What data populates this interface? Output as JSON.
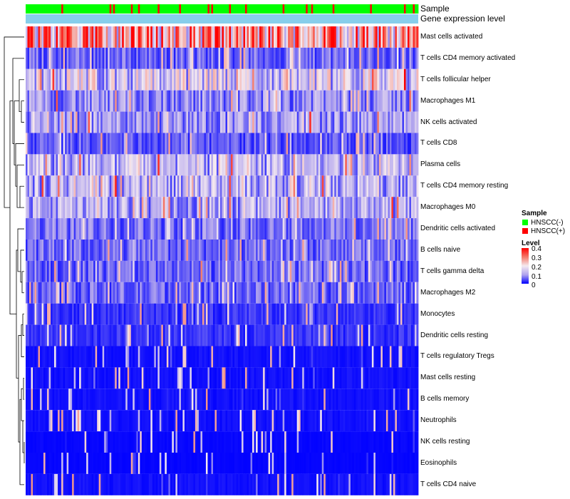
{
  "annotations": {
    "sample_label": "Sample",
    "gene_label": "Gene expression level"
  },
  "legend": {
    "sample_title": "Sample",
    "sample_items": [
      {
        "label": "HNSCC(-)",
        "color": "#00ff00"
      },
      {
        "label": "HNSCC(+)",
        "color": "#ff0000"
      }
    ],
    "level_title": "Level",
    "level_ticks": [
      "0.4",
      "0.3",
      "0.2",
      "0.1",
      "0"
    ]
  },
  "colors": {
    "negative": "#00ff00",
    "positive": "#ff0000",
    "gene_bar": "#87ceeb",
    "low": "#0000ff",
    "mid": "#f5eaf0",
    "high": "#ff0000"
  },
  "chart_data": {
    "type": "heatmap",
    "title": "",
    "row_labels": [
      "Mast cells activated",
      "T cells CD4 memory activated",
      "T cells follicular helper",
      "Macrophages M1",
      "NK cells activated",
      "T cells CD8",
      "Plasma cells",
      "T cells CD4 memory resting",
      "Macrophages M0",
      "Dendritic cells activated",
      "B cells naive",
      "T cells gamma delta",
      "Macrophages M2",
      "Monocytes",
      "Dendritic cells resting",
      "T cells regulatory  Tregs",
      "Mast cells resting",
      "B cells memory",
      "Neutrophils",
      "NK cells resting",
      "Eosinophils",
      "T cells CD4 naive"
    ],
    "row_mean_levels": [
      0.26,
      0.06,
      0.15,
      0.09,
      0.1,
      0.05,
      0.12,
      0.12,
      0.11,
      0.07,
      0.06,
      0.06,
      0.06,
      0.03,
      0.03,
      0.01,
      0.01,
      0.01,
      0.01,
      0.004,
      0.003,
      0.01
    ],
    "n_samples": 220,
    "sample_groups": [
      "HNSCC(-)",
      "HNSCC(+)"
    ],
    "positive_fraction": 0.12,
    "level_range": [
      0,
      0.4
    ],
    "legend_position": "right"
  }
}
